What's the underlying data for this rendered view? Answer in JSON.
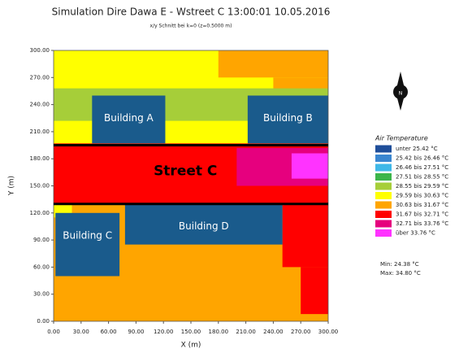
{
  "chart_data": {
    "type": "heatmap",
    "title": "Simulation Dire Dawa E - Wstreet C 13:00:01 10.05.2016",
    "subtitle": "x/y Schnitt bei k=0 (z=0.5000 m)",
    "xlabel": "X (m)",
    "ylabel": "Y (m)",
    "xlim": [
      0,
      300
    ],
    "ylim": [
      0,
      300
    ],
    "xticks": [
      {
        "value": 0,
        "label": "0.00"
      },
      {
        "value": 30,
        "label": "30.00"
      },
      {
        "value": 60,
        "label": "60.00"
      },
      {
        "value": 90,
        "label": "90.00"
      },
      {
        "value": 120,
        "label": "120.00"
      },
      {
        "value": 150,
        "label": "150.00"
      },
      {
        "value": 180,
        "label": "180.00"
      },
      {
        "value": 210,
        "label": "210.00"
      },
      {
        "value": 240,
        "label": "240.00"
      },
      {
        "value": 270,
        "label": "270.00"
      },
      {
        "value": 300,
        "label": "300.00"
      }
    ],
    "yticks": [
      {
        "value": 0,
        "label": "0.00"
      },
      {
        "value": 30,
        "label": "30.00"
      },
      {
        "value": 60,
        "label": "60.00"
      },
      {
        "value": 90,
        "label": "90.00"
      },
      {
        "value": 120,
        "label": "120.00"
      },
      {
        "value": 150,
        "label": "150.00"
      },
      {
        "value": 180,
        "label": "180.00"
      },
      {
        "value": 210,
        "label": "210.00"
      },
      {
        "value": 240,
        "label": "240.00"
      },
      {
        "value": 270,
        "label": "270.00"
      },
      {
        "value": 300,
        "label": "300.00"
      }
    ],
    "cells": [
      {
        "x0": 0,
        "x1": 300,
        "y0": 0,
        "y1": 300,
        "color": "#ffa500"
      },
      {
        "x0": 0,
        "x1": 300,
        "y0": 195,
        "y1": 300,
        "color": "#ffff00"
      },
      {
        "x0": 180,
        "x1": 300,
        "y0": 270,
        "y1": 300,
        "color": "#ffa500"
      },
      {
        "x0": 240,
        "x1": 300,
        "y0": 250,
        "y1": 270,
        "color": "#ffa500"
      },
      {
        "x0": 0,
        "x1": 300,
        "y0": 222,
        "y1": 258,
        "color": "#a6ce39"
      },
      {
        "x0": 0,
        "x1": 300,
        "y0": 130,
        "y1": 197,
        "color": "#ff0000"
      },
      {
        "x0": 200,
        "x1": 300,
        "y0": 150,
        "y1": 192,
        "color": "#e6007e"
      },
      {
        "x0": 260,
        "x1": 300,
        "y0": 158,
        "y1": 186,
        "color": "#ff33ff"
      },
      {
        "x0": 0,
        "x1": 20,
        "y0": 115,
        "y1": 130,
        "color": "#ffff00"
      },
      {
        "x0": 250,
        "x1": 300,
        "y0": 60,
        "y1": 130,
        "color": "#ff0000"
      },
      {
        "x0": 270,
        "x1": 300,
        "y0": 8,
        "y1": 60,
        "color": "#ff0000"
      }
    ],
    "buildings": [
      {
        "name": "Building A",
        "x0": 42,
        "x1": 122,
        "y0": 197,
        "y1": 250
      },
      {
        "name": "Building B",
        "x0": 212,
        "x1": 300,
        "y0": 197,
        "y1": 250
      },
      {
        "name": "Building C",
        "x0": 2,
        "x1": 72,
        "y0": 50,
        "y1": 120
      },
      {
        "name": "Building D",
        "x0": 78,
        "x1": 250,
        "y0": 85,
        "y1": 130
      }
    ],
    "building_color": "#1a5b8c",
    "street_lines": [
      195,
      130
    ],
    "annotation": "Street C",
    "north": "N",
    "legend_title": "Air Temperature",
    "legend": [
      {
        "name": "unter 25.42 °C",
        "color": "#1f4e9a"
      },
      {
        "name": "25.42 bis 26.46 °C",
        "color": "#3a86d0"
      },
      {
        "name": "26.46 bis 27.51 °C",
        "color": "#3fb8e8"
      },
      {
        "name": "27.51 bis 28.55 °C",
        "color": "#3cb54a"
      },
      {
        "name": "28.55 bis 29.59 °C",
        "color": "#a6ce39"
      },
      {
        "name": "29.59 bis 30.63 °C",
        "color": "#ffff00"
      },
      {
        "name": "30.63 bis 31.67 °C",
        "color": "#ffa500"
      },
      {
        "name": "31.67 bis 32.71 °C",
        "color": "#ff0000"
      },
      {
        "name": "32.71 bis 33.76 °C",
        "color": "#e6007e"
      },
      {
        "name": "über 33.76 °C",
        "color": "#ff33ff"
      }
    ],
    "min_text": "Min: 24.38 °C",
    "max_text": "Max: 34.80 °C"
  }
}
